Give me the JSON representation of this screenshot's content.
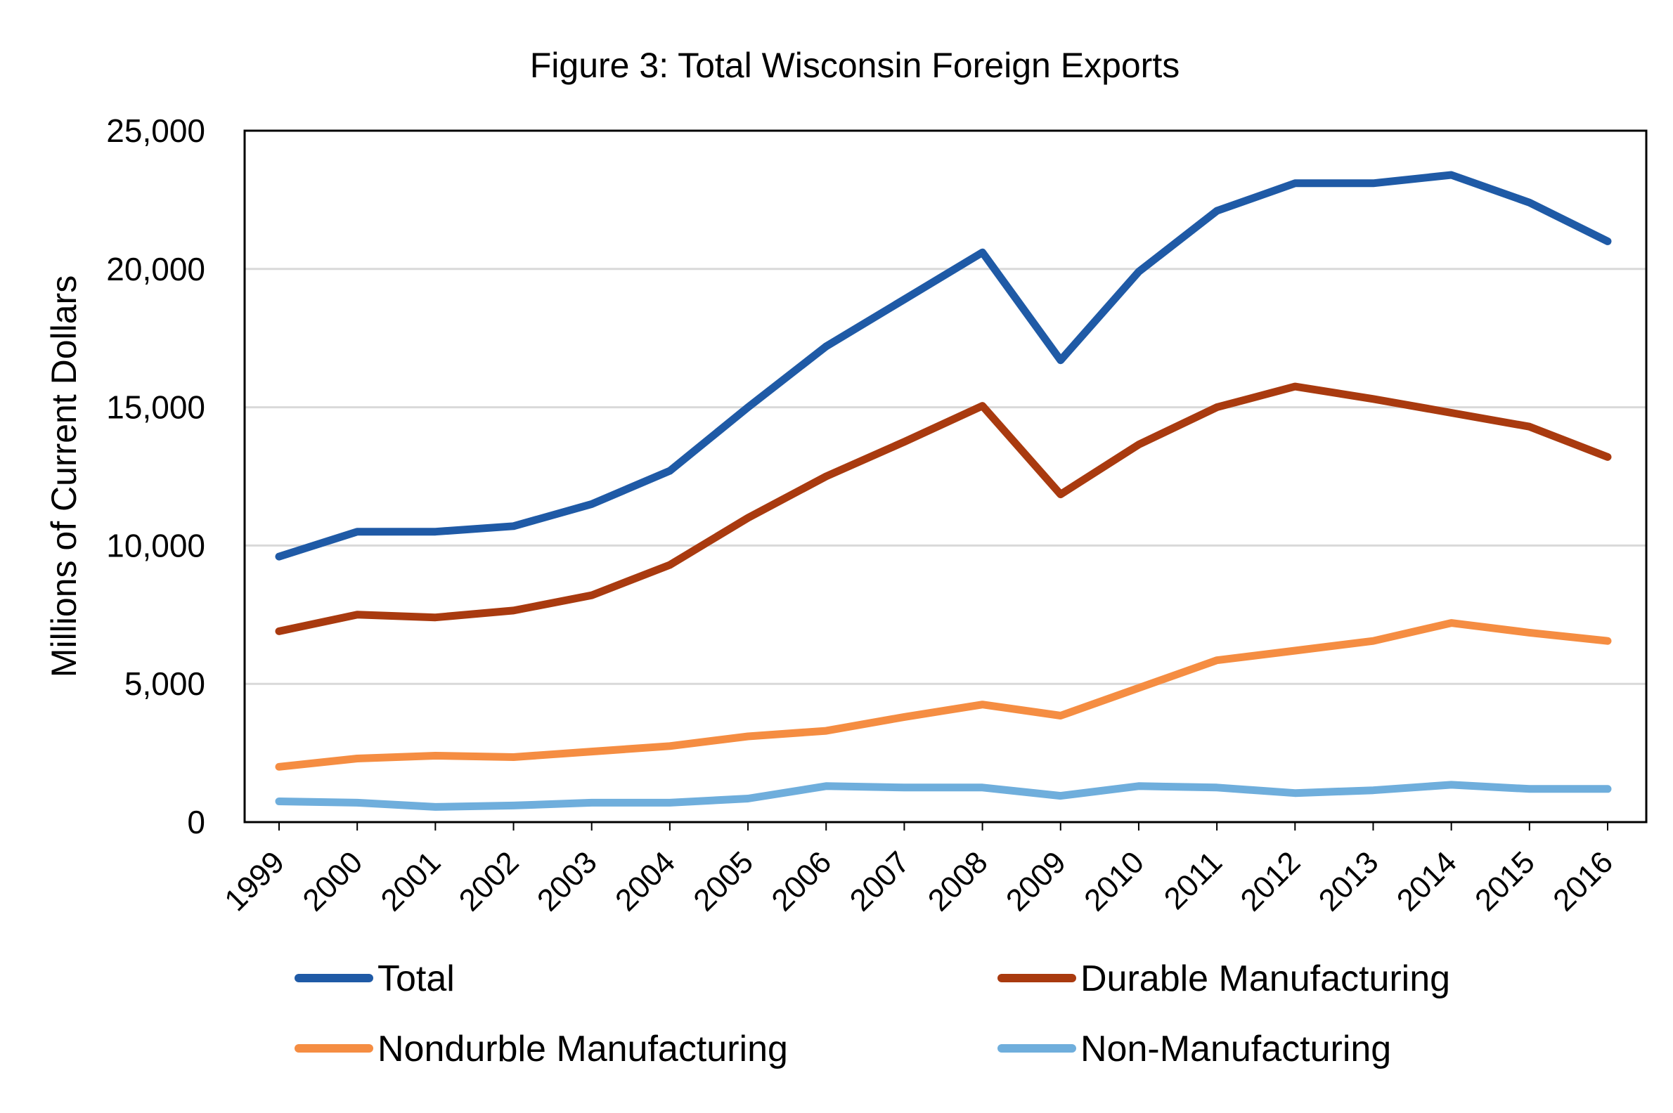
{
  "chart_data": {
    "type": "line",
    "title": "Figure 3: Total Wisconsin Foreign Exports",
    "xlabel": "",
    "ylabel": "Millions of Current Dollars",
    "ylim": [
      0,
      25000
    ],
    "yticks": [
      0,
      5000,
      10000,
      15000,
      20000,
      25000
    ],
    "ytick_labels": [
      "0",
      "5,000",
      "10,000",
      "15,000",
      "20,000",
      "25,000"
    ],
    "categories": [
      "1999",
      "2000",
      "2001",
      "2002",
      "2003",
      "2004",
      "2005",
      "2006",
      "2007",
      "2008",
      "2009",
      "2010",
      "2011",
      "2012",
      "2013",
      "2014",
      "2015",
      "2016"
    ],
    "grid": "horizontal",
    "legend_position": "bottom",
    "series": [
      {
        "name": "Total",
        "color": "#1F5AA6",
        "values": [
          9600,
          10500,
          10500,
          10700,
          11500,
          12700,
          15000,
          17200,
          18900,
          20600,
          16700,
          19900,
          22100,
          23100,
          23100,
          23400,
          22400,
          21000
        ]
      },
      {
        "name": "Durable Manufacturing",
        "color": "#A93A0F",
        "values": [
          6900,
          7500,
          7400,
          7650,
          8200,
          9300,
          11000,
          12500,
          13750,
          15050,
          11850,
          13650,
          15000,
          15750,
          15300,
          14800,
          14300,
          13200
        ]
      },
      {
        "name": "Nondurble Manufacturing",
        "color": "#F58D42",
        "values": [
          2000,
          2300,
          2400,
          2350,
          2550,
          2750,
          3100,
          3300,
          3800,
          4250,
          3850,
          4850,
          5850,
          6200,
          6550,
          7200,
          6850,
          6550
        ]
      },
      {
        "name": "Non-Manufacturing",
        "color": "#6FAEDC",
        "values": [
          750,
          700,
          550,
          600,
          700,
          700,
          850,
          1300,
          1250,
          1250,
          950,
          1300,
          1250,
          1050,
          1150,
          1350,
          1200,
          1200
        ]
      }
    ]
  }
}
